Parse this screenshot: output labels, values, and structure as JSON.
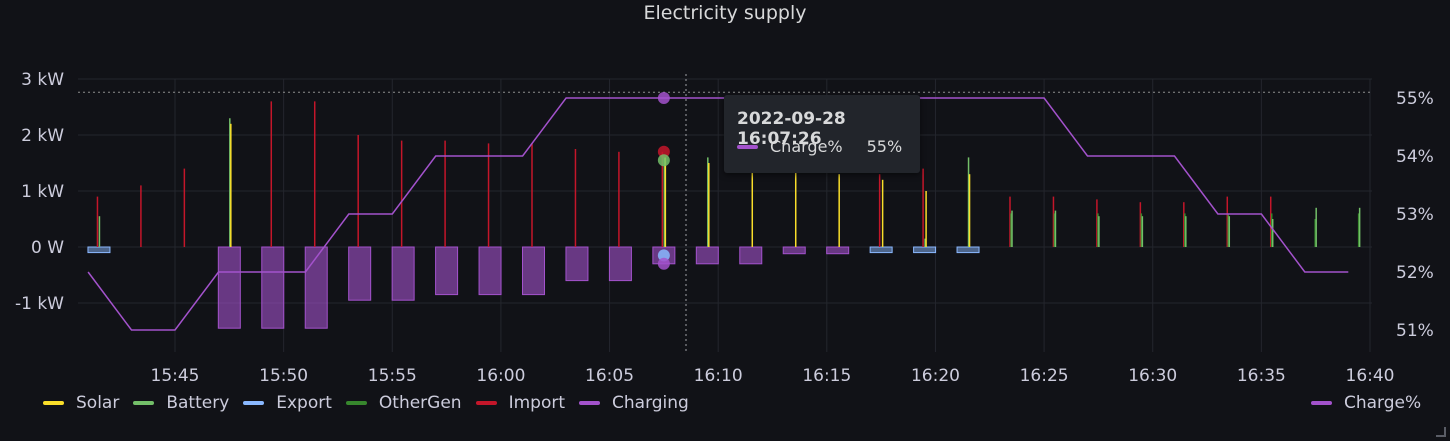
{
  "panel": {
    "title": "Electricity supply"
  },
  "colors": {
    "Solar": "#fade2a",
    "Battery": "#73bf69",
    "Export": "#8ab8ff",
    "OtherGen": "#37872d",
    "Import": "#c4162a",
    "Charging": "#a352cc",
    "Charge%": "#a352cc"
  },
  "tooltip": {
    "time": "2022-09-28 16:07:26",
    "series": "Charge%",
    "value": "55%"
  },
  "legend": {
    "left": [
      "Solar",
      "Battery",
      "Export",
      "OtherGen",
      "Import",
      "Charging"
    ],
    "right": [
      "Charge%"
    ]
  },
  "chart_data": {
    "type": "bar",
    "title": "Electricity supply",
    "x_axis": {
      "unit": "time",
      "range": [
        "15:41",
        "15:40+60"
      ],
      "ticks": [
        "15:45",
        "15:50",
        "15:55",
        "16:00",
        "16:05",
        "16:10",
        "16:15",
        "16:20",
        "16:25",
        "16:30",
        "16:35",
        "16:40"
      ]
    },
    "y_left": {
      "ticks": [
        "3 kW",
        "2 kW",
        "1 kW",
        "0 W",
        "-1 kW"
      ],
      "range_kw": [
        -2.0,
        3.0
      ]
    },
    "y_right": {
      "ticks": [
        "55%",
        "54%",
        "53%",
        "52%",
        "51%"
      ],
      "range_pct": [
        50.7,
        55.3
      ]
    },
    "bar_times": [
      "15:41:30",
      "15:43:30",
      "15:45:30",
      "15:47:30",
      "15:49:30",
      "15:51:30",
      "15:53:30",
      "15:55:30",
      "15:57:30",
      "15:59:30",
      "16:01:30",
      "16:03:30",
      "16:05:30",
      "16:07:30",
      "16:09:30",
      "16:11:30",
      "16:13:30",
      "16:15:30",
      "16:17:30",
      "16:19:30",
      "16:21:30",
      "16:23:30",
      "16:25:30",
      "16:27:30",
      "16:29:30",
      "16:31:30",
      "16:33:30",
      "16:35:30",
      "16:37:30",
      "16:39:30"
    ],
    "series": [
      {
        "name": "Solar",
        "values_kw": [
          0,
          0,
          0,
          2.2,
          0,
          0,
          0,
          0,
          0,
          0,
          0,
          0,
          0,
          1.6,
          1.5,
          1.4,
          1.4,
          1.3,
          1.2,
          1.0,
          1.3,
          0,
          0,
          0,
          0,
          0,
          0,
          0,
          0,
          0
        ]
      },
      {
        "name": "Battery",
        "values_kw": [
          0.55,
          0,
          0,
          2.3,
          0,
          0,
          0,
          0,
          0,
          0,
          0,
          0,
          0,
          1.6,
          1.6,
          0,
          0,
          0,
          0,
          0.15,
          1.6,
          0.65,
          0.65,
          0.55,
          0.55,
          0.55,
          0.55,
          0.5,
          0.7,
          0.7
        ]
      },
      {
        "name": "OtherGen",
        "values_kw": [
          0,
          0,
          0,
          0,
          0,
          0,
          0,
          0,
          0,
          0,
          0,
          0,
          0,
          0,
          0,
          0,
          0,
          0,
          0,
          0,
          0,
          0.6,
          0.6,
          0.6,
          0.6,
          0.6,
          0.6,
          0.6,
          0.5,
          0.6
        ]
      },
      {
        "name": "Import",
        "values_kw": [
          0.9,
          1.1,
          1.4,
          0,
          2.6,
          2.6,
          2.0,
          1.9,
          1.9,
          1.85,
          1.85,
          1.75,
          1.7,
          1.7,
          0,
          0,
          0,
          0,
          1.3,
          1.4,
          0,
          0.9,
          0.9,
          0.85,
          0.8,
          0.8,
          0.9,
          0.9,
          0,
          0
        ]
      },
      {
        "name": "Export",
        "values_kw": [
          -0.1,
          0,
          0,
          0,
          0,
          0,
          0,
          0,
          0,
          0,
          0,
          0,
          0,
          0,
          0,
          0,
          0,
          0,
          -0.1,
          -0.1,
          -0.1,
          0,
          0,
          0,
          0,
          0,
          0,
          0,
          0,
          0
        ]
      },
      {
        "name": "Charging",
        "values_kw": [
          0,
          0,
          0,
          -1.45,
          -1.45,
          -1.45,
          -0.95,
          -0.95,
          -0.85,
          -0.85,
          -0.85,
          -0.6,
          -0.6,
          -0.3,
          -0.3,
          -0.3,
          -0.12,
          -0.12,
          0,
          0,
          0,
          0,
          0,
          0,
          0,
          0,
          0,
          0,
          0,
          0
        ]
      }
    ],
    "line_series": {
      "name": "Charge%",
      "axis": "right",
      "x": [
        "15:41",
        "15:43",
        "15:45",
        "15:47",
        "15:49",
        "15:51",
        "15:53",
        "15:55",
        "15:57",
        "15:59",
        "16:01",
        "16:03",
        "16:05",
        "16:07",
        "16:09",
        "16:11",
        "16:13",
        "16:15",
        "16:17",
        "16:19",
        "16:21",
        "16:23",
        "16:25",
        "16:27",
        "16:29",
        "16:31",
        "16:33",
        "16:35",
        "16:37",
        "16:39"
      ],
      "values_pct": [
        52,
        51,
        51,
        52,
        52,
        52,
        53,
        53,
        54,
        54,
        54,
        55,
        55,
        55,
        55,
        55,
        55,
        55,
        55,
        55,
        55,
        55,
        55,
        54,
        54,
        54,
        53,
        53,
        52,
        52
      ]
    },
    "threshold_pct": 55.1,
    "cursor_time": "16:07:26",
    "legend_placement": "bottom",
    "grid": true
  }
}
